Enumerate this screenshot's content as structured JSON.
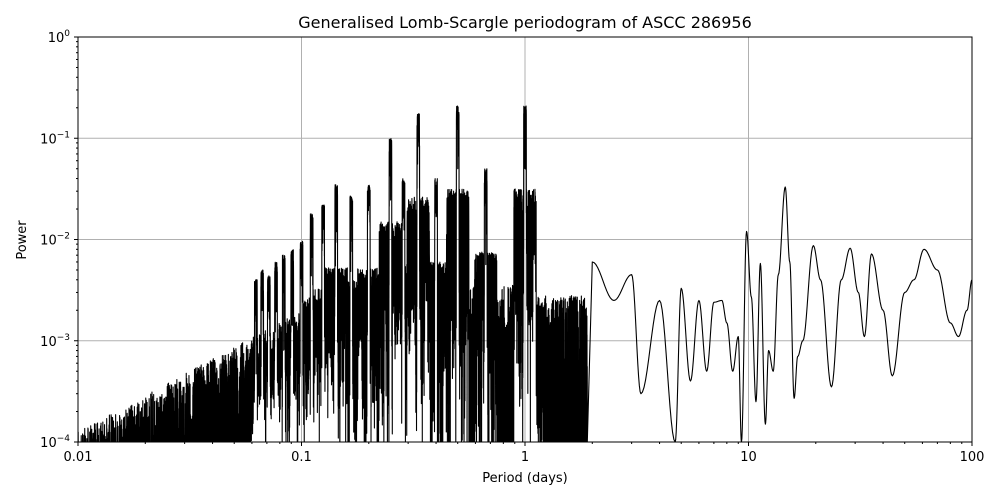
{
  "chart_data": {
    "type": "line",
    "title": "Generalised Lomb-Scargle periodogram of ASCC 286956",
    "xlabel": "Period (days)",
    "ylabel": "Power",
    "xscale": "log",
    "yscale": "log",
    "xlim": [
      0.01,
      100
    ],
    "ylim": [
      0.0001,
      1
    ],
    "grid": true,
    "x_ticks": [
      {
        "value": 0.01,
        "label": "0.01"
      },
      {
        "value": 0.1,
        "label": "0.1"
      },
      {
        "value": 1,
        "label": "1"
      },
      {
        "value": 10,
        "label": "10"
      },
      {
        "value": 100,
        "label": "100"
      }
    ],
    "y_ticks": [
      {
        "value": 0.0001,
        "base": "10",
        "exp": "−4"
      },
      {
        "value": 0.001,
        "base": "10",
        "exp": "−3"
      },
      {
        "value": 0.01,
        "base": "10",
        "exp": "−2"
      },
      {
        "value": 0.1,
        "base": "10",
        "exp": "−1"
      },
      {
        "value": 1,
        "base": "10",
        "exp": "0"
      }
    ],
    "line_color": "#000000",
    "series": [
      {
        "peaks": [
          [
            0.2,
            0.035
          ],
          [
            0.25,
            0.1
          ],
          [
            0.333,
            0.175
          ],
          [
            0.5,
            0.21
          ],
          [
            1.0,
            0.21
          ],
          [
            0.143,
            0.035
          ],
          [
            0.167,
            0.027
          ],
          [
            0.125,
            0.022
          ],
          [
            0.111,
            0.018
          ],
          [
            0.286,
            0.04
          ],
          [
            0.4,
            0.04
          ],
          [
            0.667,
            0.05
          ],
          [
            1.1,
            0.015
          ],
          [
            0.1,
            0.01
          ],
          [
            0.0909,
            0.008
          ],
          [
            0.0833,
            0.007
          ],
          [
            0.0769,
            0.006
          ],
          [
            0.0714,
            0.0045
          ],
          [
            0.0667,
            0.005
          ],
          [
            0.0625,
            0.004
          ]
        ],
        "long_period": [
          [
            2.0,
            0.006
          ],
          [
            2.5,
            0.0025
          ],
          [
            3.0,
            0.0045
          ],
          [
            3.3,
            0.0003
          ],
          [
            4.0,
            0.0025
          ],
          [
            4.7,
            0.0001
          ],
          [
            5.0,
            0.0033
          ],
          [
            5.5,
            0.0004
          ],
          [
            6.0,
            0.0025
          ],
          [
            6.5,
            0.0005
          ],
          [
            7.0,
            0.0024
          ],
          [
            7.6,
            0.0025
          ],
          [
            8.0,
            0.0015
          ],
          [
            8.5,
            0.0005
          ],
          [
            9.0,
            0.0011
          ],
          [
            9.3,
            0.0001
          ],
          [
            9.8,
            0.012
          ],
          [
            10.3,
            0.0027
          ],
          [
            10.8,
            0.00025
          ],
          [
            11.3,
            0.0058
          ],
          [
            11.9,
            0.00015
          ],
          [
            12.3,
            0.0008
          ],
          [
            12.9,
            0.0005
          ],
          [
            13.6,
            0.0045
          ],
          [
            14.6,
            0.033
          ],
          [
            15.3,
            0.006
          ],
          [
            16.0,
            0.00027
          ],
          [
            16.6,
            0.0007
          ],
          [
            17.5,
            0.001
          ],
          [
            19.5,
            0.0087
          ],
          [
            21.0,
            0.004
          ],
          [
            23.5,
            0.00035
          ],
          [
            26.0,
            0.004
          ],
          [
            28.5,
            0.0082
          ],
          [
            31.0,
            0.003
          ],
          [
            33.0,
            0.0011
          ],
          [
            35.5,
            0.0072
          ],
          [
            40.0,
            0.002
          ],
          [
            44.0,
            0.00045
          ],
          [
            50.0,
            0.003
          ],
          [
            55.0,
            0.004
          ],
          [
            61.0,
            0.008
          ],
          [
            70.0,
            0.005
          ],
          [
            80.0,
            0.0015
          ],
          [
            87.0,
            0.0011
          ],
          [
            95.0,
            0.002
          ],
          [
            100.0,
            0.004
          ]
        ]
      }
    ]
  }
}
